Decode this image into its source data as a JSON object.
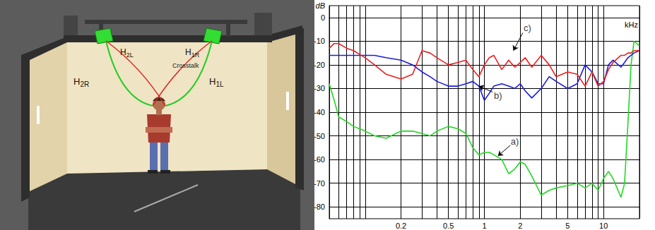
{
  "diagram": {
    "labels": {
      "h2l": "H2L",
      "h1r": "H1R",
      "crosstalk": "Crosstalk",
      "h2r": "H2R",
      "h1l": "H1L"
    }
  },
  "chart_data": {
    "type": "line",
    "log": "x",
    "grid": true,
    "x_label": "kHz",
    "y_label": "dB",
    "xlim": [
      0.05,
      20
    ],
    "xticks": [
      0.2,
      0.5,
      1,
      2,
      5,
      10
    ],
    "ylim": [
      -85,
      5
    ],
    "yticks": [
      -80,
      -70,
      -60,
      -50,
      -40,
      -30,
      -20,
      -10,
      0
    ],
    "x": [
      0.05,
      0.055,
      0.06,
      0.07,
      0.08,
      0.1,
      0.12,
      0.15,
      0.2,
      0.25,
      0.3,
      0.35,
      0.4,
      0.5,
      0.6,
      0.7,
      0.8,
      0.9,
      1,
      1.1,
      1.2,
      1.4,
      1.6,
      1.8,
      2,
      2.2,
      2.5,
      3,
      3.5,
      4,
      5,
      6,
      7,
      8,
      9,
      10,
      11,
      12,
      14,
      15,
      16,
      17,
      18,
      20
    ],
    "series": [
      {
        "color": "#22d822",
        "values": [
          -28,
          -35,
          -42,
          -44,
          -46,
          -48,
          -50,
          -51,
          -48,
          -48,
          -49,
          -50,
          -48,
          -46,
          -47,
          -49,
          -55,
          -58,
          -57,
          -57,
          -58,
          -60,
          -66,
          -64,
          -61,
          -62,
          -67,
          -75,
          -73,
          -72,
          -71,
          -70,
          -72,
          -70,
          -73,
          -68,
          -65,
          -68,
          -76,
          -70,
          -45,
          -20,
          -10,
          -12
        ]
      },
      {
        "color": "#1c1cd8",
        "values": [
          -16,
          -16,
          -16,
          -16,
          -16,
          -16,
          -16,
          -17,
          -18,
          -20,
          -23,
          -25,
          -27,
          -29,
          -29,
          -28,
          -27,
          -29,
          -35,
          -32,
          -29,
          -28,
          -29,
          -30,
          -28,
          -31,
          -34,
          -30,
          -25,
          -27,
          -30,
          -28,
          -20,
          -23,
          -28,
          -28,
          -20,
          -18,
          -21,
          -19,
          -17,
          -16,
          -15,
          -14
        ]
      },
      {
        "color": "#e82020",
        "values": [
          -13,
          -11,
          -11,
          -13,
          -14,
          -17,
          -20,
          -24,
          -26,
          -24,
          -14,
          -15,
          -17,
          -20,
          -19,
          -18,
          -22,
          -25,
          -20,
          -17,
          -16,
          -22,
          -18,
          -21,
          -19,
          -17,
          -21,
          -16,
          -20,
          -25,
          -23,
          -24,
          -29,
          -23,
          -29,
          -27,
          -22,
          -19,
          -16,
          -16,
          -15,
          -15,
          -14,
          -14
        ]
      }
    ],
    "annotations": [
      {
        "text": "a)",
        "x": 1.8,
        "y": -52.5,
        "arrow": [
          [
            1.65,
            -54
          ],
          [
            1.3,
            -58.5
          ]
        ]
      },
      {
        "text": "b)",
        "x": 1.3,
        "y": -33,
        "arrow": [
          [
            1.17,
            -31.5
          ],
          [
            0.9,
            -29
          ]
        ]
      },
      {
        "text": "c)",
        "x": 2.3,
        "y": -4.5,
        "arrow": [
          [
            2.1,
            -6.5
          ],
          [
            1.75,
            -14
          ]
        ]
      }
    ]
  }
}
